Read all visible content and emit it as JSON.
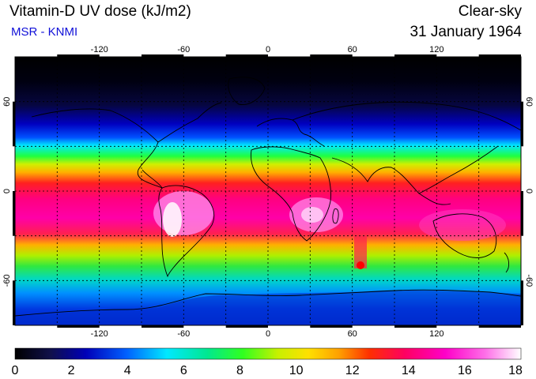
{
  "header": {
    "title": "Vitamin-D UV dose (kJ/m2)",
    "source": "MSR - KNMI",
    "condition": "Clear-sky",
    "date": "31 January 1964"
  },
  "map": {
    "projection": "equirectangular",
    "lon_range": [
      -180,
      180
    ],
    "lat_range": [
      -90,
      90
    ],
    "gridlines": "dashed every 30 degrees",
    "lon_tick_labels": [
      "-120",
      "-60",
      "0",
      "60",
      "120"
    ],
    "lat_tick_labels": [
      "60",
      "0",
      "-60"
    ],
    "lat_tick_labels_right": [
      "60",
      "0",
      "-60"
    ]
  },
  "colorbar": {
    "min": 0,
    "max": 18,
    "tick_labels": [
      "0",
      "2",
      "4",
      "6",
      "8",
      "10",
      "12",
      "14",
      "16",
      "18"
    ],
    "colors": [
      "#000000",
      "#10104a",
      "#0000b8",
      "#0060ff",
      "#00e8ff",
      "#00e890",
      "#30ff20",
      "#c8f000",
      "#ffe000",
      "#ffa000",
      "#ff3000",
      "#ff0060",
      "#ff00c8",
      "#ff70e8",
      "#ffffff"
    ]
  }
}
